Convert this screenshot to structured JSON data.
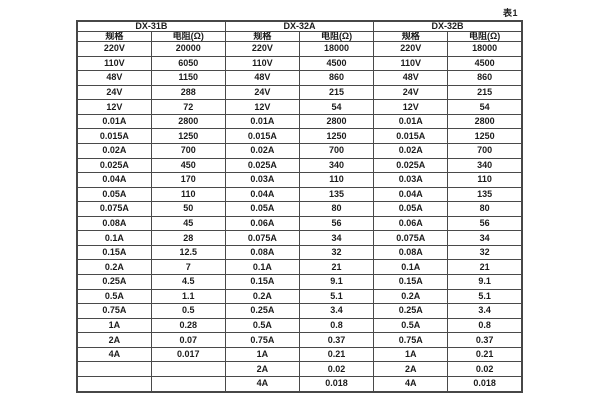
{
  "page": {
    "caption": "表1"
  },
  "table": {
    "groups": [
      {
        "name": "DX-31B"
      },
      {
        "name": "DX-32A"
      },
      {
        "name": "DX-32B"
      }
    ],
    "col_headers": {
      "spec": "规格",
      "resistance": "电阻(Ω)"
    },
    "rows": [
      [
        "220V",
        "20000",
        "220V",
        "18000",
        "220V",
        "18000"
      ],
      [
        "110V",
        "6050",
        "110V",
        "4500",
        "110V",
        "4500"
      ],
      [
        "48V",
        "1150",
        "48V",
        "860",
        "48V",
        "860"
      ],
      [
        "24V",
        "288",
        "24V",
        "215",
        "24V",
        "215"
      ],
      [
        "12V",
        "72",
        "12V",
        "54",
        "12V",
        "54"
      ],
      [
        "0.01A",
        "2800",
        "0.01A",
        "2800",
        "0.01A",
        "2800"
      ],
      [
        "0.015A",
        "1250",
        "0.015A",
        "1250",
        "0.015A",
        "1250"
      ],
      [
        "0.02A",
        "700",
        "0.02A",
        "700",
        "0.02A",
        "700"
      ],
      [
        "0.025A",
        "450",
        "0.025A",
        "340",
        "0.025A",
        "340"
      ],
      [
        "0.04A",
        "170",
        "0.03A",
        "110",
        "0.03A",
        "110"
      ],
      [
        "0.05A",
        "110",
        "0.04A",
        "135",
        "0.04A",
        "135"
      ],
      [
        "0.075A",
        "50",
        "0.05A",
        "80",
        "0.05A",
        "80"
      ],
      [
        "0.08A",
        "45",
        "0.06A",
        "56",
        "0.06A",
        "56"
      ],
      [
        "0.1A",
        "28",
        "0.075A",
        "34",
        "0.075A",
        "34"
      ],
      [
        "0.15A",
        "12.5",
        "0.08A",
        "32",
        "0.08A",
        "32"
      ],
      [
        "0.2A",
        "7",
        "0.1A",
        "21",
        "0.1A",
        "21"
      ],
      [
        "0.25A",
        "4.5",
        "0.15A",
        "9.1",
        "0.15A",
        "9.1"
      ],
      [
        "0.5A",
        "1.1",
        "0.2A",
        "5.1",
        "0.2A",
        "5.1"
      ],
      [
        "0.75A",
        "0.5",
        "0.25A",
        "3.4",
        "0.25A",
        "3.4"
      ],
      [
        "1A",
        "0.28",
        "0.5A",
        "0.8",
        "0.5A",
        "0.8"
      ],
      [
        "2A",
        "0.07",
        "0.75A",
        "0.37",
        "0.75A",
        "0.37"
      ],
      [
        "4A",
        "0.017",
        "1A",
        "0.21",
        "1A",
        "0.21"
      ],
      [
        "",
        "",
        "2A",
        "0.02",
        "2A",
        "0.02"
      ],
      [
        "",
        "",
        "4A",
        "0.018",
        "4A",
        "0.018"
      ]
    ]
  }
}
